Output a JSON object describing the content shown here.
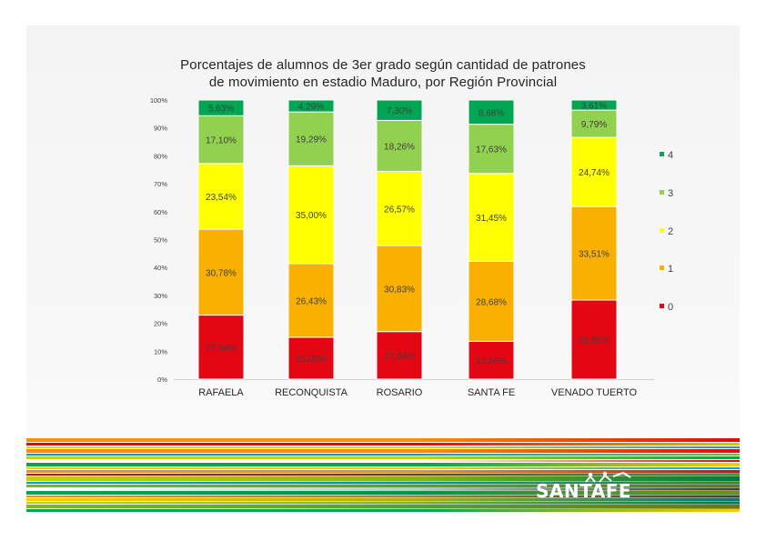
{
  "chart_data": {
    "type": "bar",
    "stacked": true,
    "title": "Porcentajes de alumnos de 3er grado según cantidad de patrones de movimiento en estadio Maduro, por Región Provincial",
    "title_lines": [
      "Porcentajes  de  alumnos  de  3er  grado  según  cantidad  de  patrones",
      "de  movimiento  en  estadio  Maduro,  por  Región  Provincial"
    ],
    "categories": [
      "RAFAELA",
      "RECONQUISTA",
      "ROSARIO",
      "SANTA FE",
      "VENADO TUERTO"
    ],
    "series": [
      {
        "name": "0",
        "color": "#e30613",
        "values": [
          22.94,
          15.0,
          17.04,
          13.56,
          28.35
        ],
        "labels": [
          "22,94%",
          "15,00%",
          "17,04%",
          "13,56%",
          "28,35%"
        ]
      },
      {
        "name": "1",
        "color": "#f9b000",
        "values": [
          30.78,
          26.43,
          30.83,
          28.68,
          33.51
        ],
        "labels": [
          "30,78%",
          "26,43%",
          "30,83%",
          "28,68%",
          "33,51%"
        ]
      },
      {
        "name": "2",
        "color": "#ffff00",
        "values": [
          23.54,
          35.0,
          26.57,
          31.45,
          24.74
        ],
        "labels": [
          "23,54%",
          "35,00%",
          "26,57%",
          "31,45%",
          "24,74%"
        ]
      },
      {
        "name": "3",
        "color": "#92d050",
        "values": [
          17.1,
          19.29,
          18.26,
          17.63,
          9.79
        ],
        "labels": [
          "17,10%",
          "19,29%",
          "18,26%",
          "17,63%",
          "9,79%"
        ]
      },
      {
        "name": "4",
        "color": "#00a651",
        "values": [
          5.63,
          4.29,
          7.3,
          8.68,
          3.61
        ],
        "labels": [
          "5,63%",
          "4,29%",
          "7,30%",
          "8,68%",
          "3,61%"
        ]
      }
    ],
    "ylim": [
      0,
      100
    ],
    "yticks": [
      "0%",
      "10%",
      "20%",
      "30%",
      "40%",
      "50%",
      "60%",
      "70%",
      "80%",
      "90%",
      "100%"
    ],
    "legend_position": "right",
    "legend_order": [
      "4",
      "3",
      "2",
      "1",
      "0"
    ],
    "grid": false
  },
  "branding": {
    "logo_text": "SANTAFE",
    "stripe_colors": [
      "#f39200",
      "#e30613",
      "#c2d500",
      "#00a651",
      "#ffcc00",
      "#009fe3",
      "#7ab929",
      "#ffffff"
    ]
  }
}
